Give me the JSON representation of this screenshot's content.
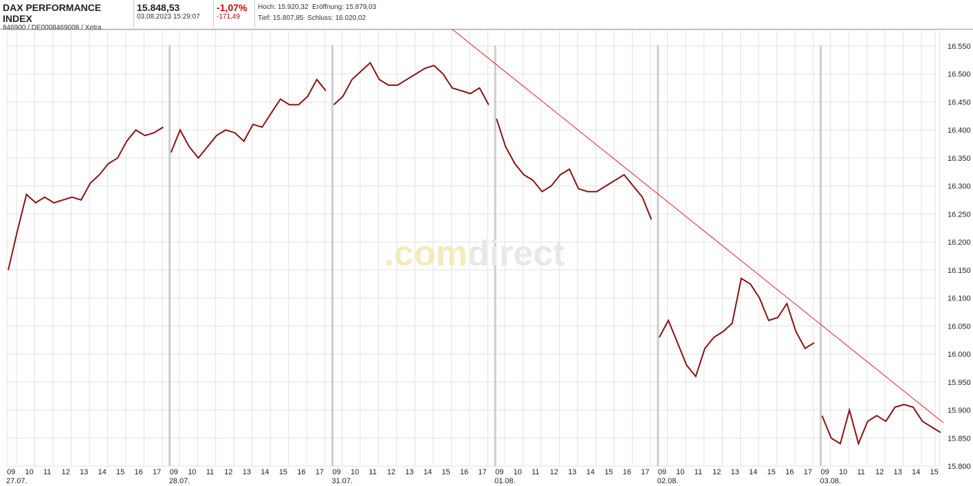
{
  "header": {
    "title": "DAX PERFORMANCE INDEX",
    "ids": "846900 / DE0008469008 / Xetra",
    "price": "15.848,53",
    "datetime": "03.08.2023 15:29:07",
    "change_pct": "-1,07%",
    "change_abs": "-171,49",
    "high": "Hoch: 15.920,32",
    "open": "Eröffnung: 15.879,03",
    "low": "Tief: 15.807,85",
    "close": "Schluss: 16.020,02"
  },
  "chart_data": {
    "type": "line",
    "watermark": [
      ".com",
      "direct"
    ],
    "color": "#8b1010",
    "grid": true,
    "ylim": [
      15800,
      16578
    ],
    "yticks": [
      {
        "value": 15800,
        "label": "15.800"
      },
      {
        "value": 15850,
        "label": "15.850"
      },
      {
        "value": 15900,
        "label": "15.900"
      },
      {
        "value": 15950,
        "label": "15.950"
      },
      {
        "value": 16000,
        "label": "16.000"
      },
      {
        "value": 16050,
        "label": "16.050"
      },
      {
        "value": 16100,
        "label": "16.100"
      },
      {
        "value": 16150,
        "label": "16.150"
      },
      {
        "value": 16200,
        "label": "16.200"
      },
      {
        "value": 16250,
        "label": "16.250"
      },
      {
        "value": 16300,
        "label": "16.300"
      },
      {
        "value": 16350,
        "label": "16.350"
      },
      {
        "value": 16400,
        "label": "16.400"
      },
      {
        "value": 16450,
        "label": "16.450"
      },
      {
        "value": 16500,
        "label": "16.500"
      },
      {
        "value": 16550,
        "label": "16.550"
      }
    ],
    "days": [
      {
        "date": "27.07.",
        "hours": [
          "09",
          "10",
          "11",
          "12",
          "13",
          "14",
          "15",
          "16",
          "17"
        ],
        "values": [
          16150,
          16220,
          16285,
          16270,
          16280,
          16270,
          16275,
          16280,
          16275,
          16305,
          16320,
          16340,
          16350,
          16380,
          16400,
          16390,
          16395,
          16405
        ]
      },
      {
        "date": "28.07.",
        "hours": [
          "09",
          "10",
          "11",
          "12",
          "13",
          "14",
          "15",
          "16",
          "17"
        ],
        "values": [
          16360,
          16400,
          16370,
          16350,
          16370,
          16390,
          16400,
          16395,
          16380,
          16410,
          16405,
          16430,
          16455,
          16445,
          16445,
          16460,
          16490,
          16470
        ]
      },
      {
        "date": "31.07.",
        "hours": [
          "09",
          "10",
          "11",
          "12",
          "13",
          "14",
          "15",
          "16",
          "17"
        ],
        "values": [
          16445,
          16460,
          16490,
          16505,
          16520,
          16490,
          16480,
          16480,
          16490,
          16500,
          16510,
          16515,
          16500,
          16475,
          16470,
          16465,
          16475,
          16445
        ]
      },
      {
        "date": "01.08.",
        "hours": [
          "09",
          "10",
          "11",
          "12",
          "13",
          "14",
          "15",
          "16",
          "17"
        ],
        "values": [
          16420,
          16370,
          16340,
          16320,
          16310,
          16290,
          16300,
          16320,
          16330,
          16295,
          16290,
          16290,
          16300,
          16310,
          16320,
          16300,
          16280,
          16240
        ]
      },
      {
        "date": "02.08.",
        "hours": [
          "09",
          "10",
          "11",
          "12",
          "13",
          "14",
          "15",
          "16",
          "17"
        ],
        "values": [
          16030,
          16060,
          16020,
          15980,
          15960,
          16010,
          16030,
          16040,
          16055,
          16135,
          16125,
          16100,
          16060,
          16065,
          16090,
          16040,
          16010,
          16020
        ]
      },
      {
        "date": "03.08.",
        "hours": [
          "09",
          "10",
          "11",
          "12",
          "13",
          "14",
          "15"
        ],
        "values": [
          15890,
          15850,
          15840,
          15900,
          15840,
          15880,
          15890,
          15880,
          15905,
          15910,
          15905,
          15880,
          15870,
          15860
        ]
      }
    ]
  }
}
